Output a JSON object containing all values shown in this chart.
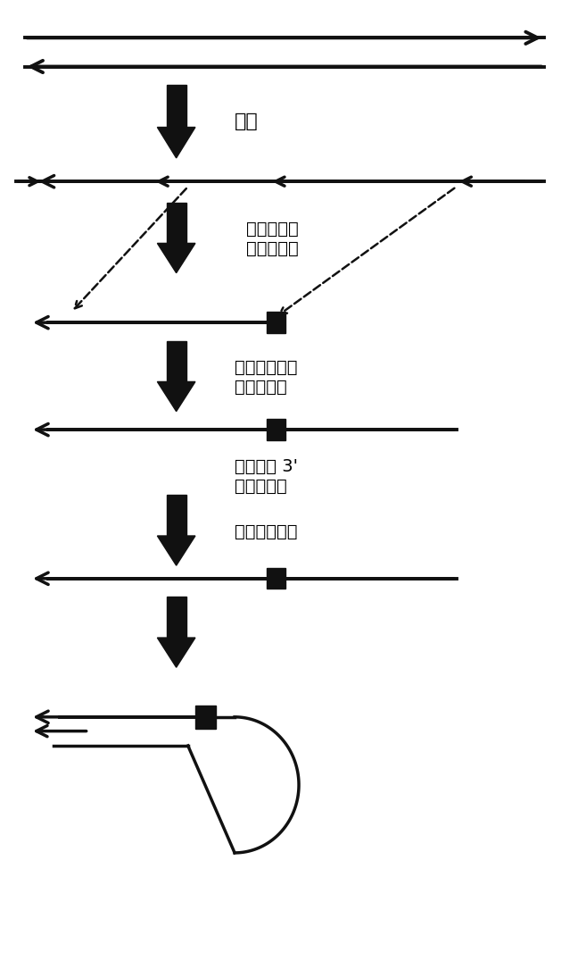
{
  "bg_color": "#ffffff",
  "text_color": "#000000",
  "arrow_color": "#111111",
  "fig_width": 6.57,
  "fig_height": 10.85,
  "labels": {
    "step1": "分段",
    "step2": "添加限制性\n内切酶位点",
    "step3": "添加与短序列\n互补的序列",
    "step4": "在短序列 3'\n端添加序列",
    "step5": "形成发夹结构"
  }
}
